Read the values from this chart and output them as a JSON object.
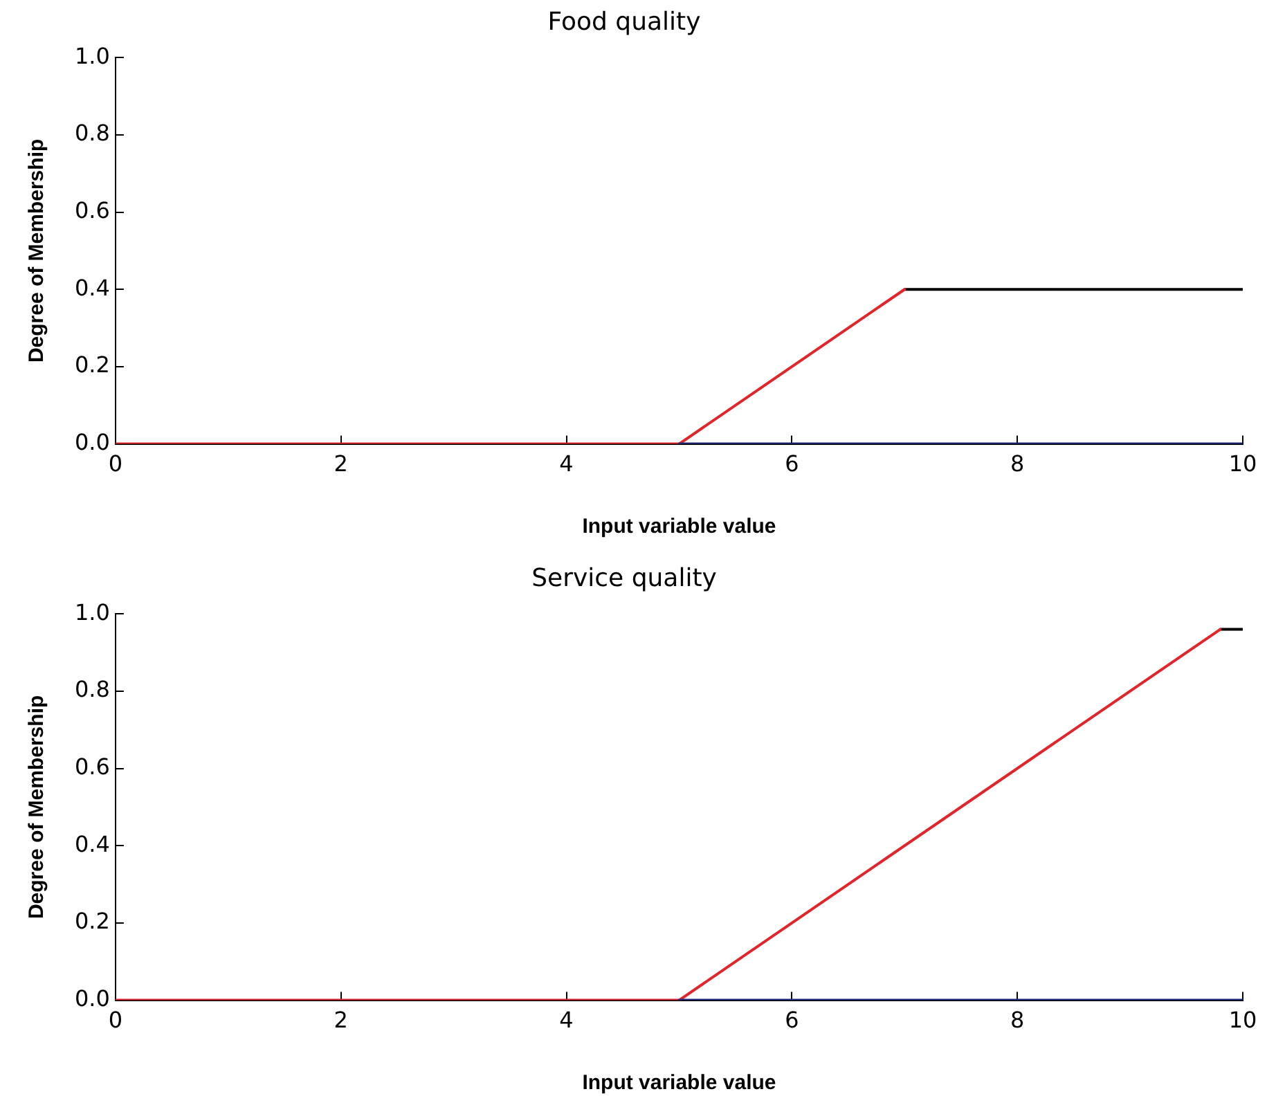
{
  "chart_data": [
    {
      "type": "line",
      "title": "Food quality",
      "xlabel": "Input variable value",
      "ylabel": "Degree of Membership",
      "xlim": [
        0,
        10
      ],
      "xticks": [
        0,
        2,
        4,
        6,
        8,
        10
      ],
      "ylim": [
        0,
        1
      ],
      "yticks": [
        {
          "value": 0,
          "label": "0.0"
        },
        {
          "value": 0.2,
          "label": "0.2"
        },
        {
          "value": 0.4,
          "label": "0.4"
        },
        {
          "value": 0.6,
          "label": "0.6"
        },
        {
          "value": 0.8,
          "label": "0.8"
        },
        {
          "value": 1,
          "label": "1.0"
        }
      ],
      "grid": false,
      "legend": false,
      "marker": "none",
      "line_style": "solid",
      "series": [
        {
          "color": "#1c2a80",
          "x": [
            5,
            10
          ],
          "values": [
            0,
            0
          ]
        },
        {
          "color": "#e0262b",
          "x": [
            0,
            5,
            7
          ],
          "values": [
            0,
            0,
            0.4
          ]
        },
        {
          "color": "#000000",
          "x": [
            7,
            10
          ],
          "values": [
            0.4,
            0.4
          ]
        }
      ]
    },
    {
      "type": "line",
      "title": "Service quality",
      "xlabel": "Input variable value",
      "ylabel": "Degree of Membership",
      "xlim": [
        0,
        10
      ],
      "xticks": [
        0,
        2,
        4,
        6,
        8,
        10
      ],
      "ylim": [
        0,
        1
      ],
      "yticks": [
        {
          "value": 0,
          "label": "0.0"
        },
        {
          "value": 0.2,
          "label": "0.2"
        },
        {
          "value": 0.4,
          "label": "0.4"
        },
        {
          "value": 0.6,
          "label": "0.6"
        },
        {
          "value": 0.8,
          "label": "0.8"
        },
        {
          "value": 1,
          "label": "1.0"
        }
      ],
      "grid": false,
      "legend": false,
      "marker": "none",
      "line_style": "solid",
      "series": [
        {
          "color": "#1c2a80",
          "x": [
            5,
            10
          ],
          "values": [
            0,
            0
          ]
        },
        {
          "color": "#e0262b",
          "x": [
            0,
            5,
            9.8
          ],
          "values": [
            0,
            0,
            0.96
          ]
        },
        {
          "color": "#000000",
          "x": [
            9.8,
            10
          ],
          "values": [
            0.96,
            0.96
          ]
        }
      ]
    }
  ]
}
